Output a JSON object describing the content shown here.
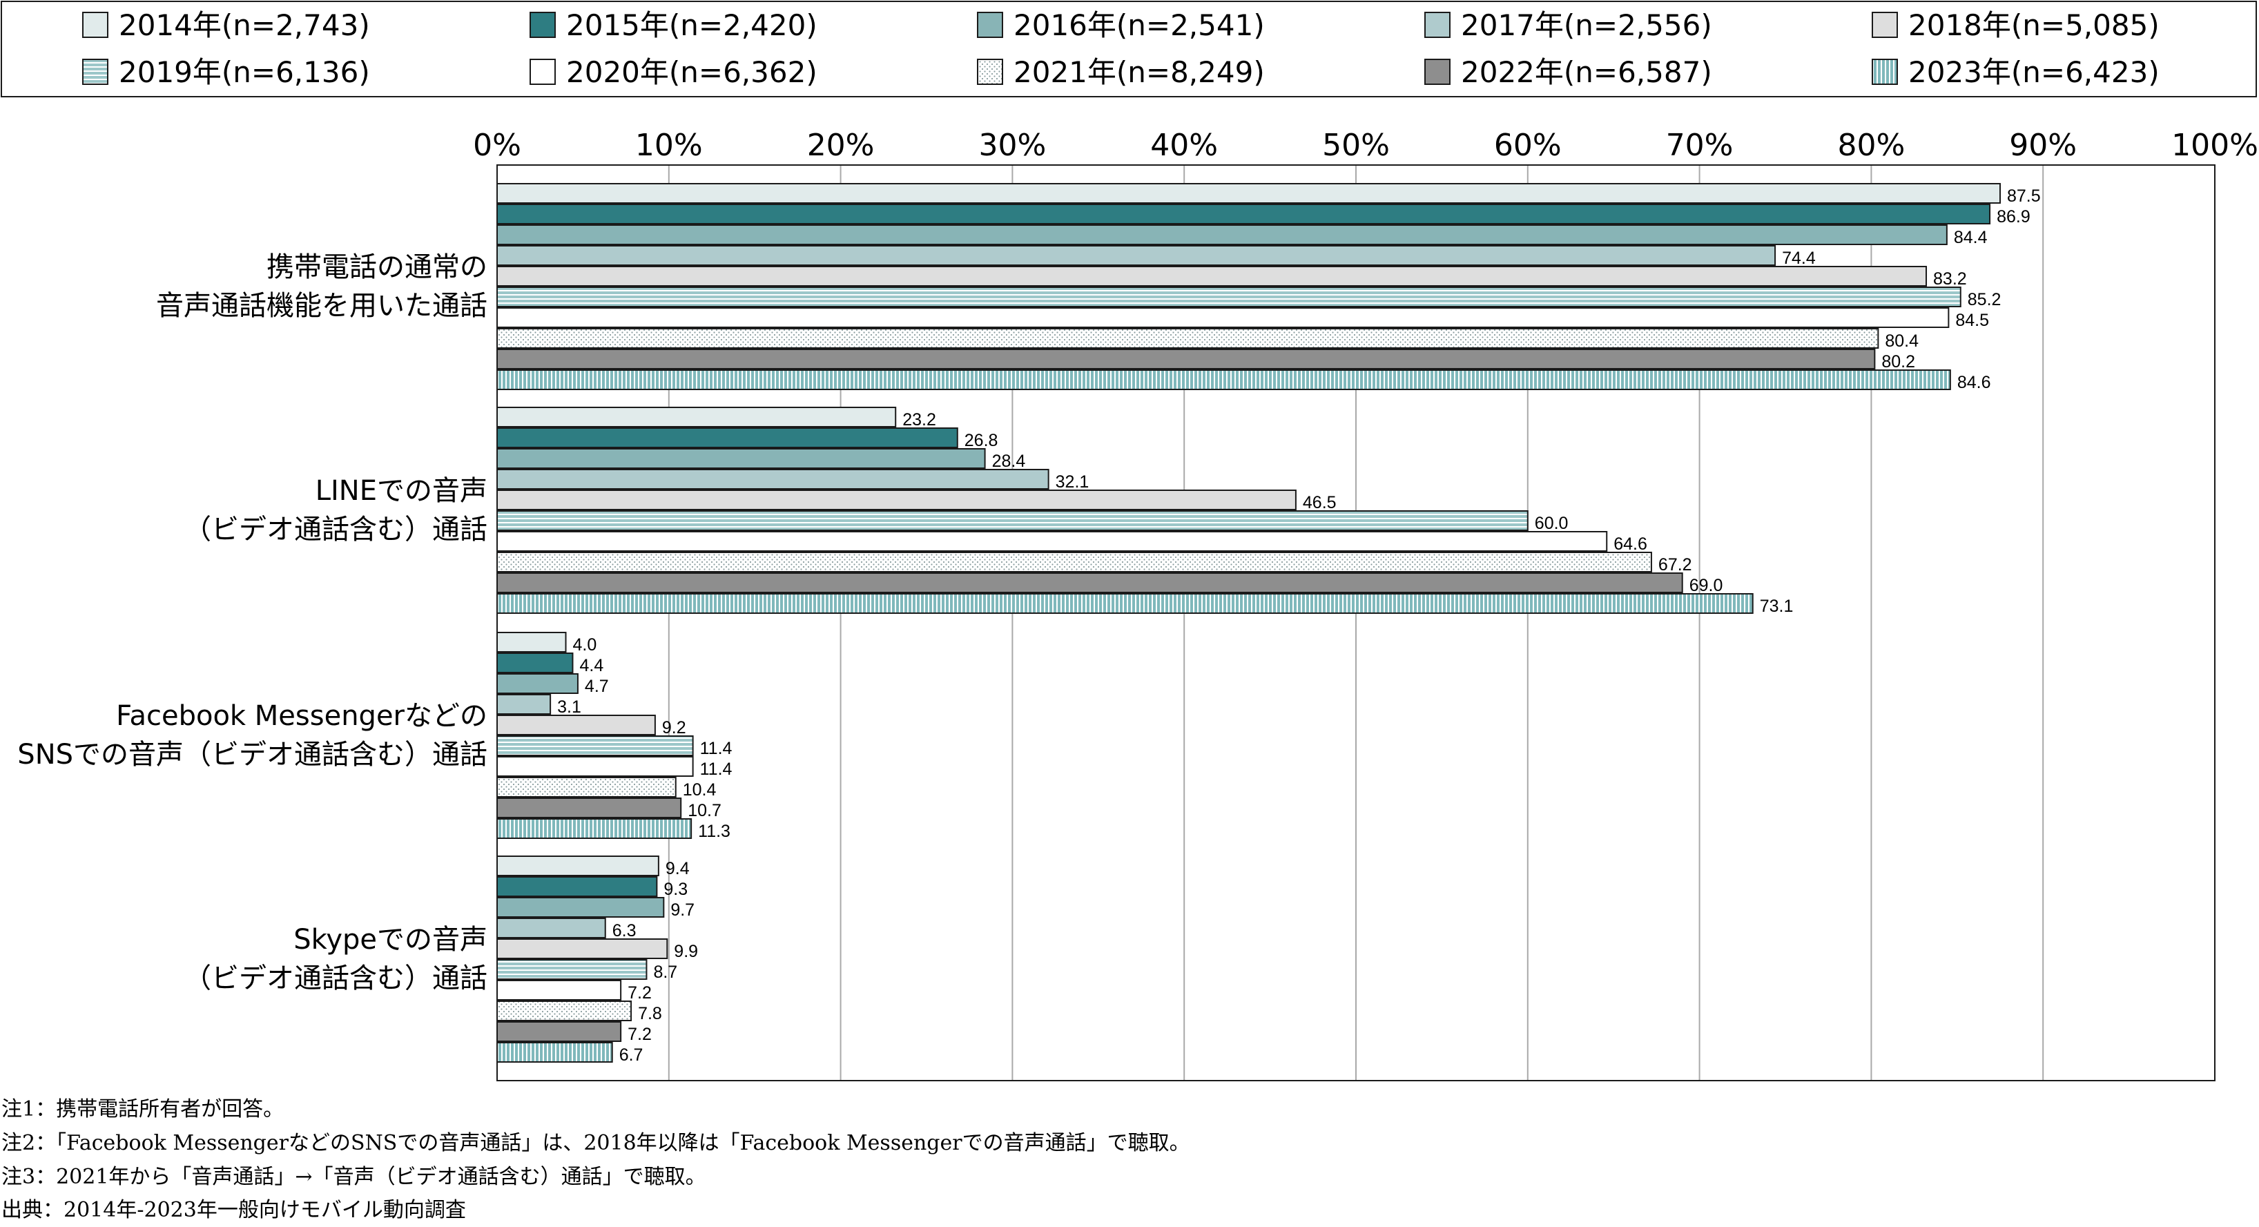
{
  "chart_data": {
    "type": "bar",
    "orientation": "horizontal",
    "xlim": [
      0,
      100
    ],
    "xticks": [
      "0%",
      "10%",
      "20%",
      "30%",
      "40%",
      "50%",
      "60%",
      "70%",
      "80%",
      "90%",
      "100%"
    ],
    "grid": true,
    "legend_position": "top",
    "categories": [
      [
        "携帯電話の通常の",
        "音声通話機能を用いた通話"
      ],
      [
        "LINEでの音声",
        "（ビデオ通話含む）通話"
      ],
      [
        "Facebook Messengerなどの",
        "SNSでの音声（ビデオ通話含む）通話"
      ],
      [
        "Skypeでの音声",
        "（ビデオ通話含む）通話"
      ]
    ],
    "series": [
      {
        "name": "2014年(n=2,743)",
        "fill": "#e1ebeb",
        "pattern": "solid",
        "values": [
          87.5,
          23.2,
          4.0,
          9.4
        ]
      },
      {
        "name": "2015年(n=2,420)",
        "fill": "#2e7d82",
        "pattern": "solid",
        "values": [
          86.9,
          26.8,
          4.4,
          9.3
        ]
      },
      {
        "name": "2016年(n=2,541)",
        "fill": "#88b4b6",
        "pattern": "solid",
        "values": [
          84.4,
          28.4,
          4.7,
          9.7
        ]
      },
      {
        "name": "2017年(n=2,556)",
        "fill": "#afcbcd",
        "pattern": "solid",
        "values": [
          74.4,
          32.1,
          3.1,
          6.3
        ]
      },
      {
        "name": "2018年(n=5,085)",
        "fill": "#dedede",
        "pattern": "solid",
        "values": [
          83.2,
          46.5,
          9.2,
          9.9
        ]
      },
      {
        "name": "2019年(n=6,136)",
        "fill": "#9cc7c9",
        "pattern": "hstripe",
        "values": [
          85.2,
          60.0,
          11.4,
          8.7
        ]
      },
      {
        "name": "2020年(n=6,362)",
        "fill": "#ffffff",
        "pattern": "solid",
        "values": [
          84.5,
          64.6,
          11.4,
          7.2
        ]
      },
      {
        "name": "2021年(n=8,249)",
        "fill": "#ffffff",
        "pattern": "dots",
        "values": [
          80.4,
          67.2,
          10.4,
          7.8
        ]
      },
      {
        "name": "2022年(n=6,587)",
        "fill": "#8e8e8e",
        "pattern": "solid",
        "values": [
          80.2,
          69.0,
          10.7,
          7.2
        ]
      },
      {
        "name": "2023年(n=6,423)",
        "fill": "#7fb8bb",
        "pattern": "vstripe",
        "values": [
          84.6,
          73.1,
          11.3,
          6.7
        ]
      }
    ]
  },
  "notes": [
    "注1：携帯電話所有者が回答。",
    "注2：「Facebook MessengerなどのSNSでの音声通話」は、2018年以降は「Facebook Messengerでの音声通話」で聴取。",
    "注3：2021年から「音声通話」→「音声（ビデオ通話含む）通話」で聴取。",
    "出典：2014年-2023年一般向けモバイル動向調査"
  ]
}
